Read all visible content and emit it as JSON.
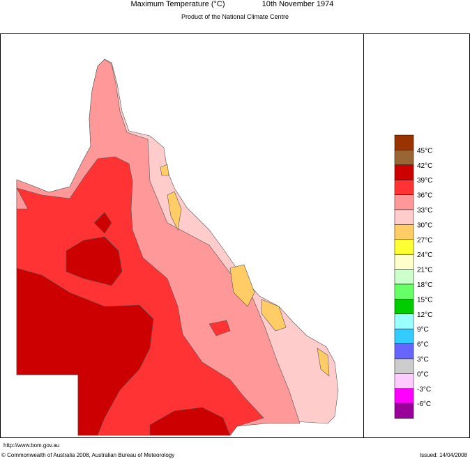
{
  "header": {
    "title": "Maximum Temperature (°C)",
    "date": "10th November 1974",
    "subtitle": "Product of the National Climate Centre"
  },
  "legend": {
    "swatch_colors": [
      "#993300",
      "#996633",
      "#cc0000",
      "#ff3333",
      "#ff9999",
      "#ffcccc",
      "#ffcc66",
      "#ffff33",
      "#ffffcc",
      "#ccffcc",
      "#66ff66",
      "#00cc00",
      "#99ffff",
      "#33ccff",
      "#6666ff",
      "#cccccc",
      "#ffccff",
      "#ff00ff",
      "#990099"
    ],
    "labels": [
      "45°C",
      "42°C",
      "39°C",
      "36°C",
      "33°C",
      "30°C",
      "27°C",
      "24°C",
      "21°C",
      "18°C",
      "15°C",
      "12°C",
      "9°C",
      "6°C",
      "3°C",
      "0°C",
      "-3°C",
      "-6°C"
    ]
  },
  "footer": {
    "url": "http://www.bom.gov.au",
    "copyright": "© Commonwealth of Australia 2008, Australian Bureau of Meteorology",
    "issued": "Issued: 14/04/2008"
  }
}
